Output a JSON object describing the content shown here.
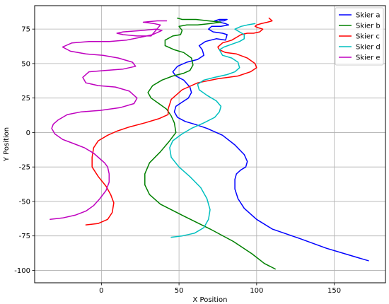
{
  "chart_data": {
    "type": "line",
    "title": "",
    "xlabel": "X Position",
    "ylabel": "Y Position",
    "xlim": [
      -43,
      183
    ],
    "ylim": [
      -109,
      92
    ],
    "xticks": [
      0,
      50,
      100,
      150
    ],
    "yticks": [
      -100,
      -75,
      -50,
      -25,
      0,
      25,
      50,
      75
    ],
    "grid": true,
    "legend_position": "top-right",
    "series": [
      {
        "name": "Skier a",
        "color": "#0000ff",
        "x": [
          172,
          160,
          145,
          128,
          110,
          100,
          92,
          88,
          86,
          86,
          87,
          90,
          93,
          94,
          92,
          86,
          78,
          68,
          60,
          54,
          49,
          47,
          48,
          52,
          56,
          58,
          57,
          53,
          48,
          46,
          49,
          55,
          62,
          66,
          65,
          63,
          67,
          74,
          80,
          81,
          78,
          72,
          69,
          71,
          77,
          82,
          80,
          76,
          73,
          76,
          81,
          79,
          76
        ],
        "y": [
          -93,
          -89,
          -84,
          -77,
          -70,
          -63,
          -55,
          -48,
          -41,
          -34,
          -30,
          -27,
          -25,
          -21,
          -16,
          -9,
          -2,
          3,
          6,
          8,
          11,
          15,
          19,
          22,
          25,
          29,
          33,
          38,
          41,
          44,
          48,
          51,
          53,
          56,
          60,
          63,
          66,
          68,
          67,
          71,
          72,
          73,
          75,
          77,
          77,
          78,
          79,
          80,
          81,
          82,
          82,
          81,
          81
        ]
      },
      {
        "name": "Skier b",
        "color": "#008000",
        "x": [
          112,
          105,
          97,
          85,
          70,
          52,
          38,
          31,
          28,
          28,
          31,
          38,
          44,
          48,
          47,
          45,
          42,
          37,
          32,
          30,
          33,
          39,
          46,
          53,
          57,
          59,
          58,
          53,
          47,
          41,
          41,
          46,
          51,
          52,
          50,
          55,
          62,
          70,
          77,
          69,
          61,
          55,
          52,
          49
        ],
        "y": [
          -99,
          -95,
          -88,
          -79,
          -70,
          -60,
          -52,
          -45,
          -38,
          -30,
          -22,
          -14,
          -6,
          0,
          7,
          12,
          17,
          21,
          25,
          29,
          34,
          38,
          41,
          43,
          45,
          49,
          54,
          58,
          60,
          63,
          67,
          70,
          71,
          74,
          77,
          78,
          78,
          79,
          80,
          81,
          82,
          82,
          82,
          83
        ]
      },
      {
        "name": "Skier c",
        "color": "#ff0000",
        "x": [
          -10,
          -2,
          4,
          7,
          8,
          6,
          3,
          -2,
          -6,
          -6,
          -5,
          -2,
          4,
          10,
          18,
          28,
          37,
          43,
          43,
          45,
          52,
          62,
          75,
          88,
          96,
          100,
          99,
          94,
          87,
          80,
          76,
          75,
          78,
          84,
          87,
          90,
          94,
          98,
          102,
          104,
          101,
          99,
          100,
          103,
          107,
          110,
          108
        ],
        "y": [
          -67,
          -66,
          -63,
          -58,
          -51,
          -45,
          -39,
          -32,
          -25,
          -18,
          -11,
          -6,
          -2,
          1,
          4,
          7,
          10,
          13,
          17,
          24,
          31,
          36,
          39,
          41,
          44,
          47,
          50,
          54,
          57,
          58,
          60,
          62,
          65,
          67,
          69,
          71,
          72,
          72,
          73,
          75,
          76,
          77,
          78,
          79,
          80,
          81,
          83
        ]
      },
      {
        "name": "Skier d",
        "color": "#00bfbf",
        "x": [
          45,
          52,
          60,
          66,
          69,
          70,
          68,
          64,
          57,
          50,
          45,
          44,
          46,
          52,
          58,
          66,
          73,
          76,
          77,
          74,
          68,
          63,
          62,
          66,
          73,
          81,
          86,
          89,
          88,
          84,
          78,
          76,
          79,
          84,
          89,
          92,
          92,
          89,
          86,
          90,
          94,
          99
        ],
        "y": [
          -76,
          -75,
          -73,
          -69,
          -63,
          -56,
          -48,
          -40,
          -32,
          -25,
          -18,
          -11,
          -6,
          -1,
          3,
          7,
          11,
          15,
          19,
          23,
          27,
          31,
          35,
          38,
          40,
          42,
          44,
          47,
          51,
          54,
          56,
          60,
          62,
          64,
          66,
          68,
          71,
          73,
          75,
          77,
          78,
          79
        ]
      },
      {
        "name": "Skier e",
        "color": "#bf00bf",
        "x": [
          -33,
          -25,
          -17,
          -10,
          -5,
          -1,
          3,
          5,
          5,
          4,
          2,
          -1,
          -5,
          -11,
          -18,
          -25,
          -30,
          -32,
          -31,
          -28,
          -22,
          -13,
          -1,
          12,
          21,
          23,
          18,
          9,
          -2,
          -10,
          -12,
          -8,
          2,
          14,
          22,
          20,
          11,
          1,
          -10,
          -20,
          -25,
          -19,
          -8,
          5,
          16,
          25,
          33,
          37,
          39,
          35,
          26,
          14,
          10,
          14,
          23,
          32,
          38,
          34,
          27,
          36,
          42
        ],
        "y": [
          -63,
          -62,
          -60,
          -57,
          -53,
          -48,
          -42,
          -36,
          -30,
          -25,
          -22,
          -19,
          -15,
          -11,
          -8,
          -5,
          -1,
          3,
          6,
          9,
          13,
          15,
          16,
          18,
          21,
          25,
          30,
          33,
          34,
          36,
          40,
          44,
          45,
          46,
          48,
          51,
          54,
          56,
          57,
          59,
          62,
          65,
          66,
          66,
          67,
          69,
          71,
          73,
          74,
          75,
          74,
          73,
          72,
          71,
          70,
          70,
          78,
          79,
          80,
          81,
          81
        ]
      }
    ]
  }
}
